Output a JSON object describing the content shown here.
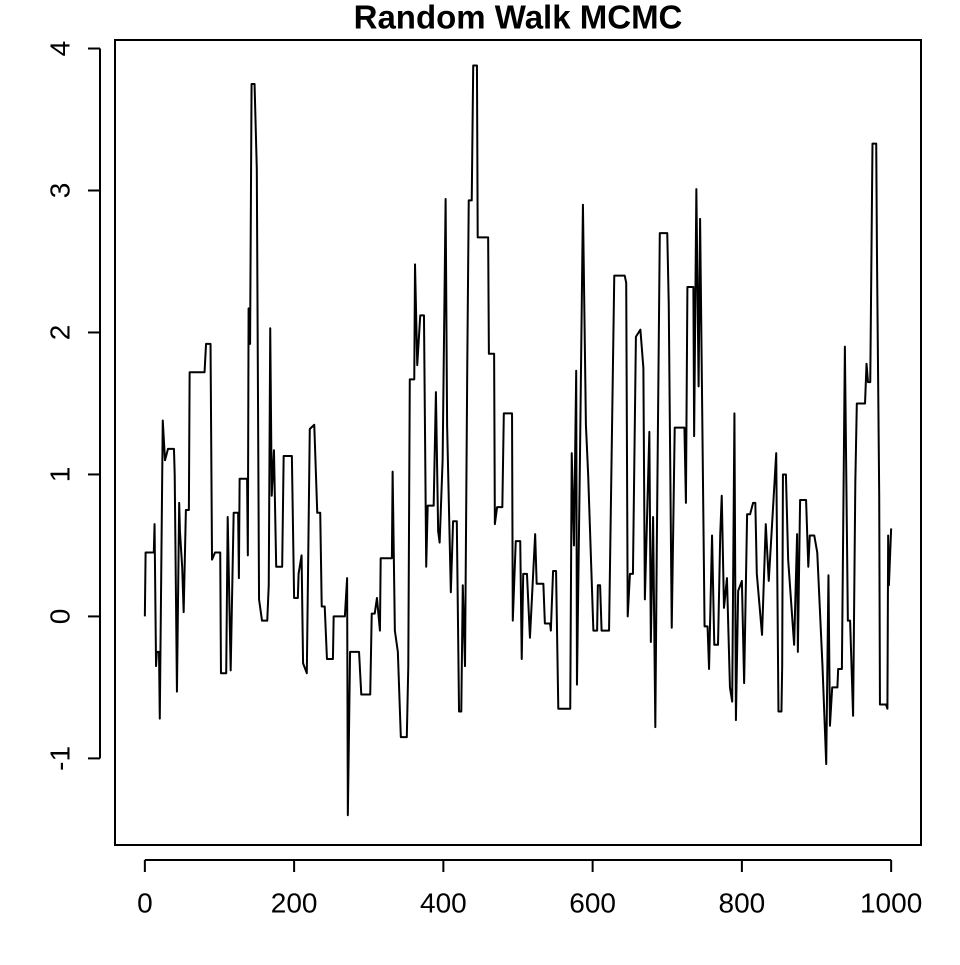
{
  "chart_data": {
    "type": "line",
    "title": "Random Walk MCMC",
    "color": "#000000",
    "xlim": [
      -40,
      1040
    ],
    "ylim": [
      -1.61,
      4.06
    ],
    "xticks": [
      0,
      200,
      400,
      600,
      800,
      1000
    ],
    "yticks": [
      -1,
      0,
      1,
      2,
      3,
      4
    ],
    "x": [
      0,
      1,
      12,
      13,
      15,
      16,
      19,
      20,
      24,
      27,
      31,
      39,
      40,
      43,
      46,
      47,
      50,
      52,
      55,
      59,
      60,
      80,
      82,
      88,
      90,
      94,
      101,
      102,
      109,
      111,
      115,
      119,
      125,
      126,
      127,
      137,
      138,
      139,
      141,
      143,
      147,
      150,
      153,
      157,
      164,
      166,
      168,
      170,
      173,
      176,
      184,
      186,
      197,
      200,
      205,
      206,
      210,
      212,
      217,
      221,
      227,
      231,
      235,
      237,
      241,
      244,
      252,
      253,
      268,
      271,
      272,
      275,
      287,
      290,
      302,
      304,
      308,
      311,
      315,
      316,
      331,
      332,
      335,
      339,
      343,
      351,
      353,
      355,
      361,
      362,
      365,
      369,
      374,
      377,
      379,
      387,
      390,
      393,
      395,
      399,
      403,
      405,
      410,
      413,
      418,
      421,
      424,
      426,
      429,
      432,
      434,
      438,
      440,
      445,
      446,
      460,
      461,
      468,
      469,
      472,
      479,
      481,
      492,
      493,
      497,
      503,
      505,
      507,
      512,
      516,
      523,
      525,
      534,
      536,
      543,
      544,
      547,
      551,
      554,
      570,
      572,
      575,
      578,
      579,
      583,
      587,
      591,
      594,
      601,
      606,
      607,
      610,
      612,
      622,
      629,
      643,
      645,
      647,
      650,
      654,
      658,
      664,
      668,
      670,
      676,
      678,
      681,
      684,
      686,
      690,
      700,
      702,
      706,
      710,
      723,
      725,
      727,
      735,
      736,
      739,
      742,
      744,
      750,
      754,
      756,
      760,
      763,
      768,
      771,
      773,
      776,
      780,
      784,
      787,
      790,
      792,
      795,
      800,
      803,
      807,
      811,
      815,
      818,
      820,
      827,
      832,
      836,
      846,
      849,
      853,
      854,
      855,
      859,
      862,
      870,
      874,
      875,
      878,
      886,
      889,
      891,
      897,
      901,
      908,
      913,
      916,
      918,
      921,
      928,
      929,
      934,
      938,
      942,
      945,
      949,
      952,
      954,
      965,
      967,
      969,
      972,
      975,
      980,
      981,
      984,
      985,
      993,
      995,
      996,
      997,
      1000
    ],
    "values": [
      0,
      0.45,
      0.45,
      0.65,
      -0.35,
      -0.25,
      -0.25,
      -0.72,
      1.38,
      1.1,
      1.18,
      1.18,
      1.0,
      -0.53,
      0.8,
      0.6,
      0.35,
      0.03,
      0.75,
      0.75,
      1.72,
      1.72,
      1.92,
      1.92,
      0.4,
      0.45,
      0.45,
      -0.4,
      -0.4,
      0.7,
      -0.38,
      0.73,
      0.73,
      0.27,
      0.97,
      0.97,
      0.43,
      2.17,
      1.92,
      3.75,
      3.75,
      3.15,
      0.12,
      -0.03,
      -0.03,
      0.22,
      2.03,
      0.85,
      1.17,
      0.35,
      0.35,
      1.13,
      1.13,
      0.13,
      0.13,
      0.3,
      0.43,
      -0.33,
      -0.4,
      1.32,
      1.35,
      0.73,
      0.73,
      0.07,
      0.07,
      -0.3,
      -0.3,
      0,
      0,
      0.27,
      -1.4,
      -0.25,
      -0.25,
      -0.55,
      -0.55,
      0.02,
      0.02,
      0.13,
      -0.1,
      0.41,
      0.41,
      1.02,
      -0.1,
      -0.25,
      -0.85,
      -0.85,
      -0.35,
      1.67,
      1.67,
      2.48,
      1.77,
      2.12,
      2.12,
      0.35,
      0.78,
      0.78,
      1.58,
      0.6,
      0.52,
      1.1,
      2.94,
      1.35,
      0.17,
      0.67,
      0.67,
      -0.67,
      -0.67,
      0.22,
      -0.35,
      1.75,
      2.93,
      2.93,
      3.88,
      3.88,
      2.67,
      2.67,
      1.85,
      1.85,
      0.65,
      0.77,
      0.77,
      1.43,
      1.43,
      -0.03,
      0.53,
      0.53,
      -0.3,
      0.3,
      0.3,
      -0.15,
      0.58,
      0.23,
      0.23,
      -0.05,
      -0.05,
      -0.1,
      0.32,
      0.32,
      -0.65,
      -0.65,
      1.15,
      0.5,
      1.73,
      -0.48,
      1.1,
      2.9,
      1.35,
      1.0,
      -0.1,
      -0.1,
      0.22,
      0.22,
      -0.1,
      -0.1,
      2.4,
      2.4,
      2.35,
      0,
      0.3,
      0.3,
      1.97,
      2.02,
      1.75,
      0.12,
      1.3,
      -0.18,
      0.7,
      -0.78,
      0.5,
      2.7,
      2.7,
      2.2,
      -0.08,
      1.33,
      1.33,
      0.8,
      2.32,
      2.32,
      1.27,
      3.01,
      1.62,
      2.8,
      -0.07,
      -0.07,
      -0.37,
      0.57,
      -0.2,
      -0.2,
      0.58,
      0.85,
      0.06,
      0.27,
      -0.5,
      -0.6,
      1.43,
      -0.73,
      0.18,
      0.25,
      -0.47,
      0.72,
      0.72,
      0.8,
      0.8,
      0.3,
      -0.13,
      0.65,
      0.25,
      1.15,
      -0.67,
      -0.67,
      -0.35,
      1.0,
      1.0,
      0.4,
      -0.2,
      0.58,
      -0.25,
      0.82,
      0.82,
      0.35,
      0.57,
      0.57,
      0.45,
      -0.35,
      -1.04,
      0.29,
      -0.77,
      -0.5,
      -0.5,
      -0.37,
      -0.37,
      1.9,
      -0.03,
      -0.03,
      -0.7,
      0.95,
      1.5,
      1.5,
      1.78,
      1.65,
      1.65,
      3.33,
      3.33,
      2.55,
      0.85,
      -0.62,
      -0.62,
      -0.65,
      0.57,
      0.22,
      0.62
    ]
  }
}
